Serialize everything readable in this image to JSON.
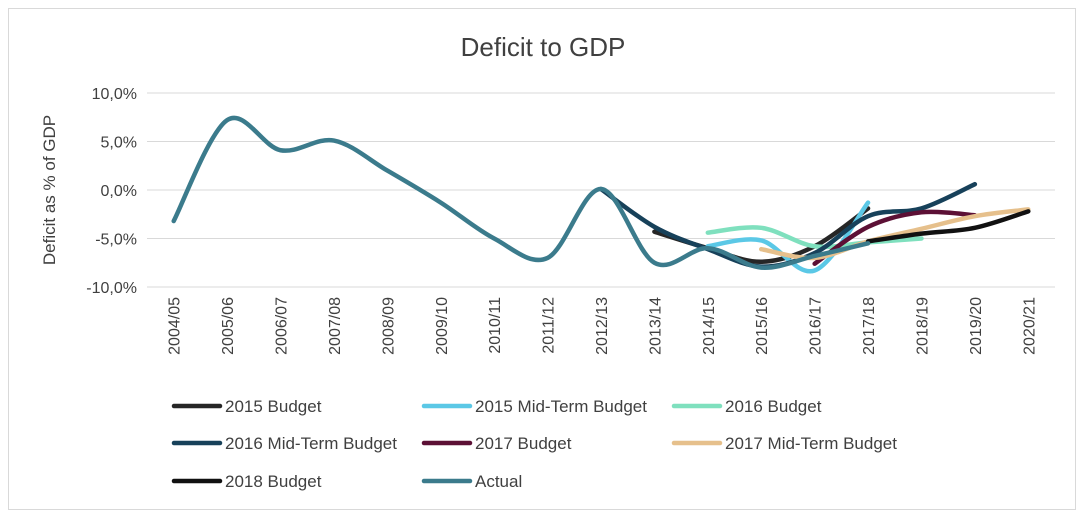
{
  "chart_data": {
    "type": "line",
    "title": "Deficit to GDP",
    "xlabel": "",
    "ylabel": "Deficit as % of GDP",
    "ylim": [
      -10,
      10
    ],
    "yticks": [
      -10,
      -5,
      0,
      5,
      10
    ],
    "ytick_labels": [
      "-10,0%",
      "-5,0%",
      "0,0%",
      "5,0%",
      "10,0%"
    ],
    "grid": true,
    "legend_position": "bottom",
    "categories": [
      "2004/05",
      "2005/06",
      "2006/07",
      "2007/08",
      "2008/09",
      "2009/10",
      "2010/11",
      "2011/12",
      "2012/13",
      "2013/14",
      "2014/15",
      "2015/16",
      "2016/17",
      "2017/18",
      "2018/19",
      "2019/20",
      "2020/21"
    ],
    "series": [
      {
        "name": "2015 Budget",
        "color": "#262626",
        "values": [
          null,
          null,
          null,
          null,
          null,
          null,
          null,
          null,
          null,
          -4.3,
          -6.0,
          -7.4,
          -5.8,
          -1.9,
          null,
          null,
          null
        ]
      },
      {
        "name": "2015 Mid-Term Budget",
        "color": "#5bc8e6",
        "values": [
          null,
          null,
          null,
          null,
          null,
          null,
          null,
          null,
          null,
          null,
          -5.8,
          -5.2,
          -8.3,
          -1.3,
          null,
          null,
          null
        ]
      },
      {
        "name": "2016 Budget",
        "color": "#7fe0be",
        "values": [
          null,
          null,
          null,
          null,
          null,
          null,
          null,
          null,
          null,
          null,
          -4.4,
          -3.9,
          -5.8,
          -5.4,
          -5.0,
          null,
          null
        ]
      },
      {
        "name": "2016 Mid-Term Budget",
        "color": "#17415a",
        "values": [
          null,
          null,
          null,
          null,
          null,
          null,
          null,
          null,
          0.1,
          -3.8,
          -6.1,
          -7.9,
          -6.5,
          -2.7,
          -1.9,
          0.6,
          null
        ]
      },
      {
        "name": "2017 Budget",
        "color": "#5c1035",
        "values": [
          null,
          null,
          null,
          null,
          null,
          null,
          null,
          null,
          null,
          null,
          null,
          null,
          -7.6,
          -3.8,
          -2.3,
          -2.6,
          null
        ]
      },
      {
        "name": "2017 Mid-Term Budget",
        "color": "#e6c08c",
        "values": [
          null,
          null,
          null,
          null,
          null,
          null,
          null,
          null,
          null,
          null,
          null,
          -6.1,
          -7.0,
          -5.3,
          -4.0,
          -2.7,
          -2.0
        ]
      },
      {
        "name": "2018 Budget",
        "color": "#111111",
        "values": [
          null,
          null,
          null,
          null,
          null,
          null,
          null,
          null,
          null,
          null,
          null,
          null,
          null,
          -5.3,
          -4.5,
          -3.9,
          -2.2
        ]
      },
      {
        "name": "Actual",
        "color": "#3b7b8c",
        "values": [
          -3.2,
          7.2,
          4.1,
          5.1,
          2.0,
          -1.3,
          -5.0,
          -7.0,
          0.1,
          -7.5,
          -6.0,
          -8.0,
          -6.8,
          -5.5,
          null,
          null,
          null
        ]
      }
    ]
  }
}
